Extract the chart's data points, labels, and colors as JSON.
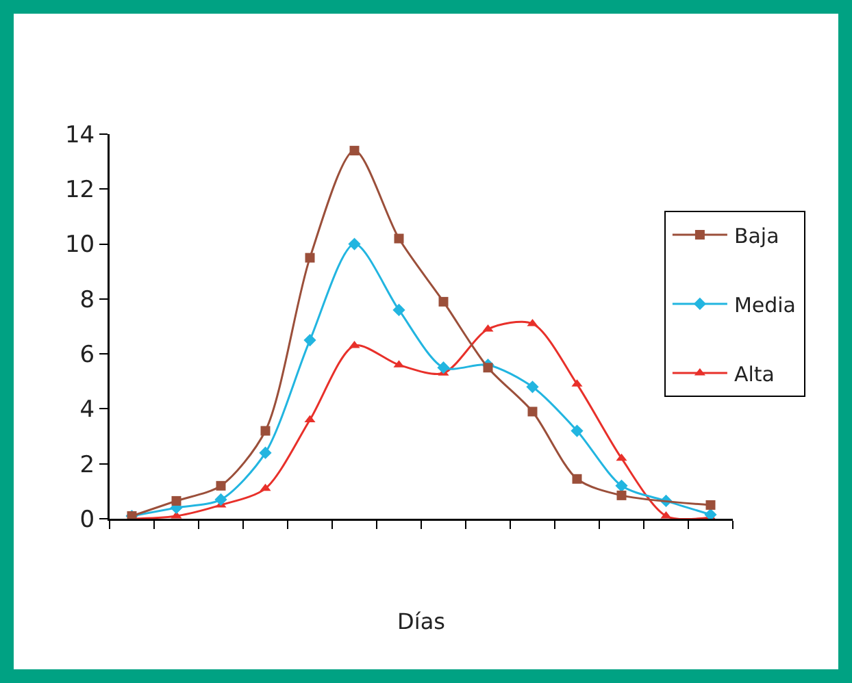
{
  "chart_data": {
    "type": "line",
    "xlabel": "Días",
    "categories": [
      null,
      null,
      null,
      null,
      null,
      null,
      null,
      null,
      null,
      null,
      null,
      null,
      null,
      null
    ],
    "ylim": [
      0,
      14
    ],
    "yticks": [
      0,
      2,
      4,
      6,
      8,
      10,
      12,
      14
    ],
    "grid": false,
    "legend": "right",
    "line_style": "solid",
    "series": [
      {
        "name": "Baja",
        "color": "#9b4f3a",
        "marker": "square",
        "values": [
          0.1,
          0.65,
          1.2,
          3.2,
          9.5,
          13.4,
          10.2,
          7.9,
          5.5,
          3.9,
          1.45,
          0.85,
          null,
          0.5
        ]
      },
      {
        "name": "Media",
        "color": "#22b5e0",
        "marker": "diamond",
        "values": [
          0.1,
          0.4,
          0.7,
          2.4,
          6.5,
          10,
          7.6,
          5.5,
          5.6,
          4.8,
          3.2,
          1.2,
          0.65,
          0.15
        ]
      },
      {
        "name": "Alta",
        "color": "#e8302a",
        "marker": "triangle",
        "values": [
          0,
          0.1,
          0.5,
          1.1,
          3.6,
          6.3,
          5.6,
          5.3,
          6.9,
          7.1,
          4.9,
          2.2,
          0.1,
          0.05
        ]
      }
    ]
  }
}
